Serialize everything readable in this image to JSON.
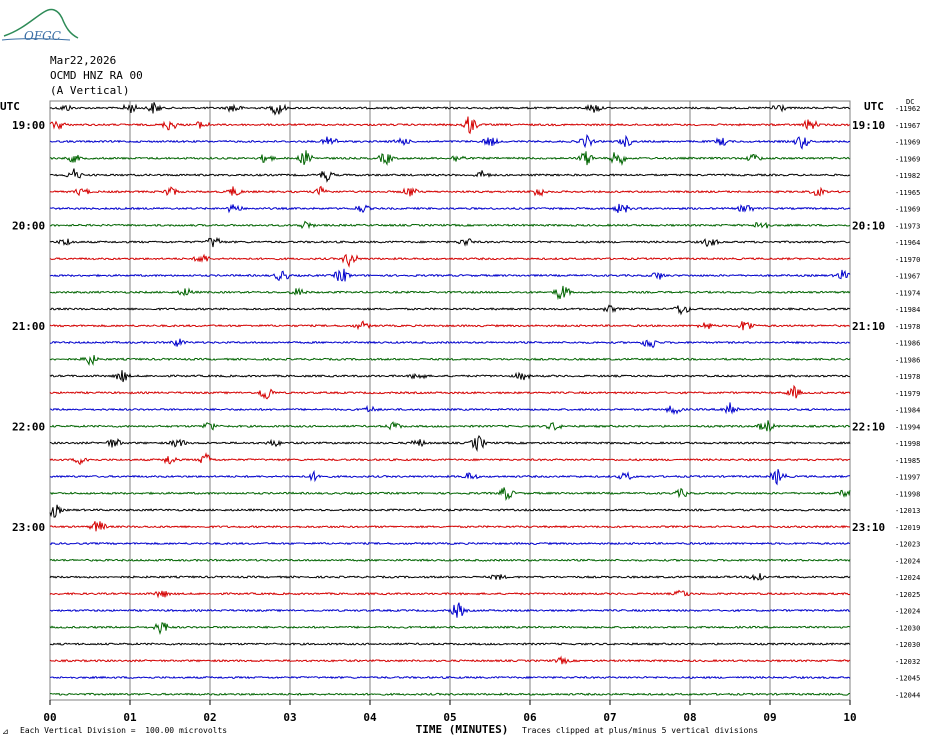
{
  "header": {
    "logo_text": "OFGC",
    "date": "Mar22,2026",
    "station": "OCMD HNZ RA 00",
    "component": "(A Vertical)"
  },
  "left_axis_label": "UTC",
  "right_axis_label": "UTC",
  "dc_label": "DC",
  "left_time_labels": [
    "19:00",
    "20:00",
    "21:00",
    "22:00",
    "23:00"
  ],
  "right_time_labels": [
    "19:10",
    "20:10",
    "21:10",
    "22:10",
    "23:10"
  ],
  "footer": {
    "scale_note": "Each Vertical Division =  100.00 microvolts",
    "clip_note": "Traces clipped at plus/minus 5 vertical divisions"
  },
  "colors": {
    "trace_cycle": [
      "#000000",
      "#d40000",
      "#0000cc",
      "#006400"
    ],
    "grid": "#808080"
  },
  "chart_data": {
    "type": "line",
    "title": "Mar22,2026 OCMD HNZ RA 00 (A Vertical)",
    "xlabel": "TIME (MINUTES)",
    "ylabel": "UTC",
    "xlim": [
      0,
      10
    ],
    "x_ticks": [
      "00",
      "01",
      "02",
      "03",
      "04",
      "05",
      "06",
      "07",
      "08",
      "09",
      "10"
    ],
    "grid": true,
    "traces_per_hour": 6,
    "minutes_per_trace": 10,
    "dc_offsets": [
      -11962,
      -11967,
      -11969,
      -11969,
      -11982,
      -11965,
      -11969,
      -11973,
      -11964,
      -11970,
      -11967,
      -11974,
      -11984,
      -11978,
      -11986,
      -11986,
      -11978,
      -11979,
      -11984,
      -11994,
      -11998,
      -11985,
      -11997,
      -11998,
      -12013,
      -12019,
      -12023,
      -12024,
      -12024,
      -12025,
      -12024,
      -12030,
      -12030,
      -12032,
      -12045,
      -12044
    ],
    "events": [
      [
        [
          0.2,
          3
        ],
        [
          1.0,
          5
        ],
        [
          1.3,
          6
        ],
        [
          2.3,
          5
        ],
        [
          2.85,
          8
        ],
        [
          6.8,
          5
        ],
        [
          9.1,
          5
        ]
      ],
      [
        [
          0.1,
          5
        ],
        [
          1.5,
          6
        ],
        [
          1.9,
          4
        ],
        [
          5.25,
          10
        ],
        [
          9.5,
          6
        ]
      ],
      [
        [
          3.5,
          6
        ],
        [
          4.4,
          4
        ],
        [
          5.5,
          5
        ],
        [
          6.7,
          6
        ],
        [
          7.2,
          5
        ],
        [
          8.4,
          4
        ],
        [
          9.4,
          7
        ]
      ],
      [
        [
          0.3,
          4
        ],
        [
          2.7,
          5
        ],
        [
          3.2,
          8
        ],
        [
          4.2,
          6
        ],
        [
          5.1,
          4
        ],
        [
          6.7,
          7
        ],
        [
          7.1,
          9
        ],
        [
          8.8,
          4
        ]
      ],
      [
        [
          0.3,
          6
        ],
        [
          3.45,
          6
        ],
        [
          5.4,
          4
        ]
      ],
      [
        [
          0.4,
          4
        ],
        [
          1.5,
          5
        ],
        [
          2.3,
          5
        ],
        [
          3.4,
          5
        ],
        [
          4.5,
          5
        ],
        [
          6.1,
          5
        ],
        [
          9.6,
          4
        ]
      ],
      [
        [
          2.3,
          5
        ],
        [
          3.9,
          4
        ],
        [
          7.15,
          6
        ],
        [
          8.7,
          5
        ]
      ],
      [
        [
          3.2,
          4
        ],
        [
          8.9,
          6
        ]
      ],
      [
        [
          0.2,
          4
        ],
        [
          2.05,
          6
        ],
        [
          5.2,
          4
        ],
        [
          8.25,
          5
        ]
      ],
      [
        [
          1.9,
          5
        ],
        [
          3.75,
          8
        ]
      ],
      [
        [
          2.9,
          6
        ],
        [
          3.65,
          8
        ],
        [
          7.6,
          4
        ],
        [
          9.9,
          5
        ]
      ],
      [
        [
          1.7,
          4
        ],
        [
          3.1,
          4
        ],
        [
          6.4,
          9
        ]
      ],
      [
        [
          7.0,
          3
        ],
        [
          7.9,
          6
        ]
      ],
      [
        [
          3.9,
          4
        ],
        [
          8.2,
          4
        ],
        [
          8.7,
          7
        ]
      ],
      [
        [
          1.6,
          4
        ],
        [
          7.5,
          7
        ]
      ],
      [
        [
          0.5,
          6
        ]
      ],
      [
        [
          0.9,
          6
        ],
        [
          4.6,
          4
        ],
        [
          5.9,
          4
        ]
      ],
      [
        [
          2.7,
          8
        ],
        [
          9.3,
          6
        ]
      ],
      [
        [
          4.0,
          3
        ],
        [
          7.8,
          5
        ],
        [
          8.5,
          9
        ]
      ],
      [
        [
          2.0,
          5
        ],
        [
          4.3,
          4
        ],
        [
          6.3,
          4
        ],
        [
          8.95,
          7
        ]
      ],
      [
        [
          0.8,
          5
        ],
        [
          1.6,
          5
        ],
        [
          2.8,
          3
        ],
        [
          4.6,
          4
        ],
        [
          5.35,
          8
        ]
      ],
      [
        [
          0.4,
          5
        ],
        [
          1.5,
          5
        ],
        [
          1.95,
          6
        ]
      ],
      [
        [
          3.3,
          4
        ],
        [
          5.25,
          4
        ],
        [
          7.2,
          4
        ],
        [
          9.1,
          8
        ]
      ],
      [
        [
          5.7,
          7
        ],
        [
          7.9,
          4
        ],
        [
          9.95,
          4
        ]
      ],
      [
        [
          0.05,
          7
        ]
      ],
      [
        [
          0.6,
          7
        ]
      ],
      [],
      [],
      [
        [
          5.6,
          3
        ],
        [
          8.85,
          6
        ]
      ],
      [
        [
          1.4,
          4
        ],
        [
          7.9,
          4
        ]
      ],
      [
        [
          5.1,
          8
        ]
      ],
      [
        [
          1.4,
          7
        ]
      ],
      [],
      [
        [
          6.4,
          3
        ]
      ],
      [],
      []
    ]
  }
}
